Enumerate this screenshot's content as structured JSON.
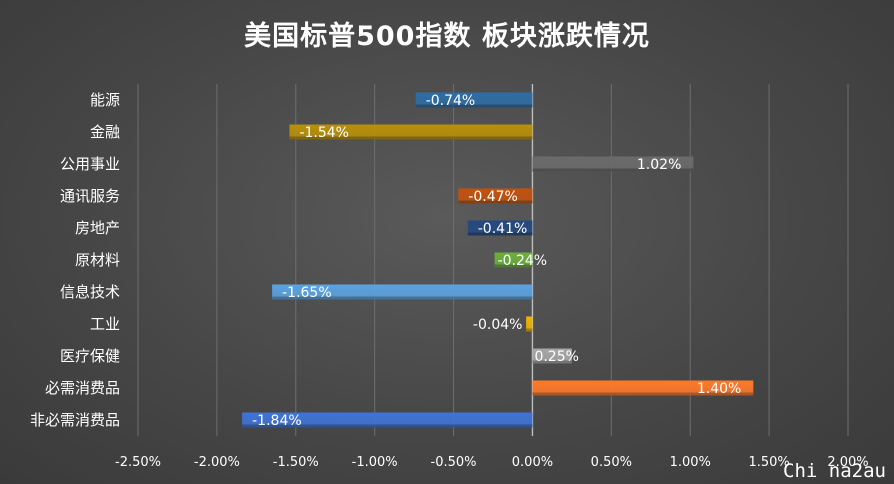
{
  "chart_data": {
    "type": "bar",
    "orientation": "horizontal",
    "title": "美国标普500指数 板块涨跌情况",
    "xlabel": "",
    "ylabel": "",
    "xlim": [
      -2.5,
      2.0
    ],
    "xticks": [
      "-2.50%",
      "-2.00%",
      "-1.50%",
      "-1.00%",
      "-0.50%",
      "0.00%",
      "0.50%",
      "1.00%",
      "1.50%",
      "2.00%"
    ],
    "grid": true,
    "legend": "none",
    "categories": [
      "能源",
      "金融",
      "公用事业",
      "通讯服务",
      "房地产",
      "原材料",
      "信息技术",
      "工业",
      "医疗保健",
      "必需消费品",
      "非必需消费品"
    ],
    "values": [
      -0.74,
      -1.54,
      1.02,
      -0.47,
      -0.41,
      -0.24,
      -1.65,
      -0.04,
      0.25,
      1.4,
      -1.84
    ],
    "labels": [
      "-0.74%",
      "-1.54%",
      "1.02%",
      "-0.47%",
      "-0.41%",
      "-0.24%",
      "-1.65%",
      "-0.04%",
      "0.25%",
      "1.40%",
      "-1.84%"
    ],
    "colors": [
      "#2e6da4",
      "#b8900a",
      "#6b6b6b",
      "#c2520f",
      "#24497f",
      "#6cae3f",
      "#5ba3e0",
      "#f0b400",
      "#a8a8a8",
      "#ff7a2a",
      "#3f74d6"
    ]
  },
  "watermark": "Chi na2au"
}
